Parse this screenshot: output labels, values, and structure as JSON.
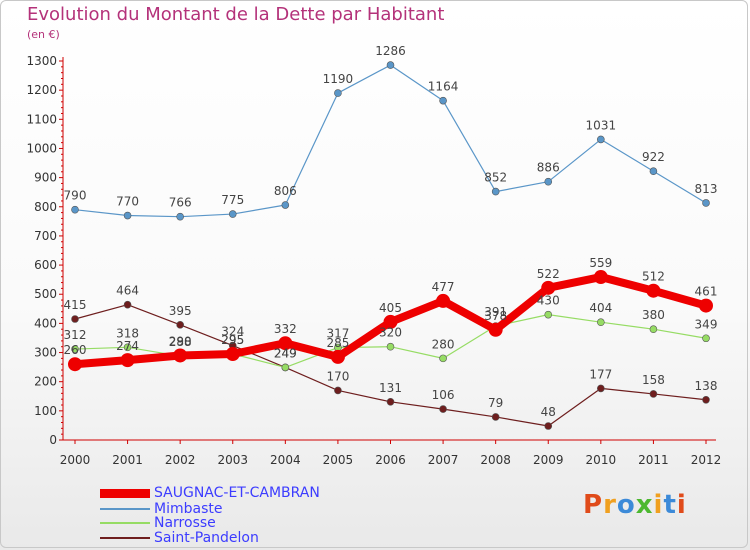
{
  "page": {
    "title": "Evolution du Montant de la Dette par Habitant",
    "subtitle": "(en €)",
    "logo_text": "Proxiti"
  },
  "chart_data": {
    "type": "line",
    "title": "Evolution du Montant de la Dette par Habitant",
    "subtitle": "(en €)",
    "categories": [
      "2000",
      "2001",
      "2002",
      "2003",
      "2004",
      "2005",
      "2006",
      "2007",
      "2008",
      "2009",
      "2010",
      "2011",
      "2012"
    ],
    "ylim": [
      0,
      1300
    ],
    "yticks": [
      0,
      100,
      200,
      300,
      400,
      500,
      600,
      700,
      800,
      900,
      1000,
      1100,
      1200,
      1300
    ],
    "grid": false,
    "legend_position": "bottom-left",
    "series": [
      {
        "name": "SAUGNAC-ET-CAMBRAN",
        "color": "#ee0000",
        "values": [
          260,
          274,
          290,
          295,
          332,
          285,
          405,
          477,
          378,
          522,
          559,
          512,
          461
        ]
      },
      {
        "name": "Mimbaste",
        "color": "#5a96c8",
        "values": [
          790,
          770,
          766,
          775,
          806,
          1190,
          1286,
          1164,
          852,
          886,
          1031,
          922,
          813
        ]
      },
      {
        "name": "Narrosse",
        "color": "#96dc64",
        "values": [
          312,
          318,
          288,
          295,
          249,
          317,
          320,
          280,
          391,
          430,
          404,
          380,
          349
        ]
      },
      {
        "name": "Saint-Pandelon",
        "color": "#6e1e1e",
        "values": [
          415,
          464,
          395,
          324,
          249,
          170,
          131,
          106,
          79,
          48,
          177,
          158,
          138
        ]
      }
    ]
  }
}
